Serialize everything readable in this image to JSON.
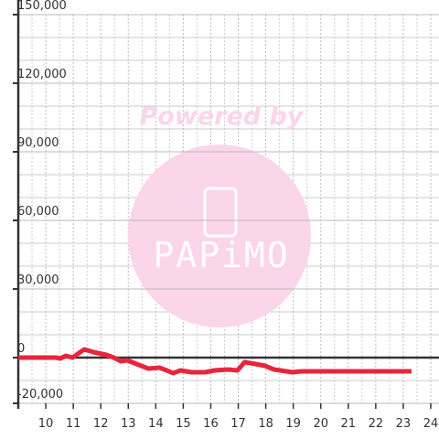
{
  "chart_data": {
    "type": "line",
    "watermark": {
      "caption": "Powered by",
      "brand": "PAPiMO"
    },
    "xlim": [
      9,
      24.3
    ],
    "ylim": [
      -20000,
      150000
    ],
    "xticks": [
      10,
      11,
      12,
      13,
      14,
      15,
      16,
      17,
      18,
      19,
      20,
      21,
      22,
      23,
      24
    ],
    "x_minor_ticks": [
      9.5,
      10.5,
      11.5,
      12.5,
      13.5,
      14.5,
      15.5,
      16.5,
      17.5,
      18.5,
      19.5,
      20.5,
      21.5,
      22.5,
      23.5
    ],
    "yticks": [
      {
        "value": -20000,
        "label": "-20,000"
      },
      0,
      {
        "value": 30000,
        "label": "30,000"
      },
      {
        "value": 60000,
        "label": "60,000"
      },
      {
        "value": 90000,
        "label": "90,000"
      },
      {
        "value": 120000,
        "label": "120,000"
      },
      {
        "value": 150000,
        "label": "150,000"
      }
    ],
    "y_minor_ticks": [
      -10000,
      10000,
      20000,
      40000,
      50000,
      70000,
      80000,
      100000,
      110000,
      130000,
      140000
    ],
    "grid": true,
    "zero_line": true,
    "series": [
      {
        "color": "#e8253c",
        "x": [
          9.0,
          10.37,
          10.53,
          10.73,
          10.97,
          11.4,
          11.73,
          12.2,
          12.47,
          12.73,
          12.97,
          13.3,
          13.73,
          14.13,
          14.4,
          14.63,
          14.9,
          15.3,
          15.8,
          16.13,
          16.63,
          16.97,
          17.23,
          17.63,
          17.97,
          18.3,
          18.97,
          19.3,
          23.3
        ],
        "values": [
          0,
          0,
          -400,
          800,
          0,
          3600,
          2400,
          1200,
          0,
          -1600,
          -1200,
          -2800,
          -4800,
          -4400,
          -5600,
          -6800,
          -5600,
          -6400,
          -6400,
          -5600,
          -5200,
          -5600,
          -2000,
          -2800,
          -3600,
          -5200,
          -6400,
          -6000,
          -6000
        ]
      }
    ]
  }
}
